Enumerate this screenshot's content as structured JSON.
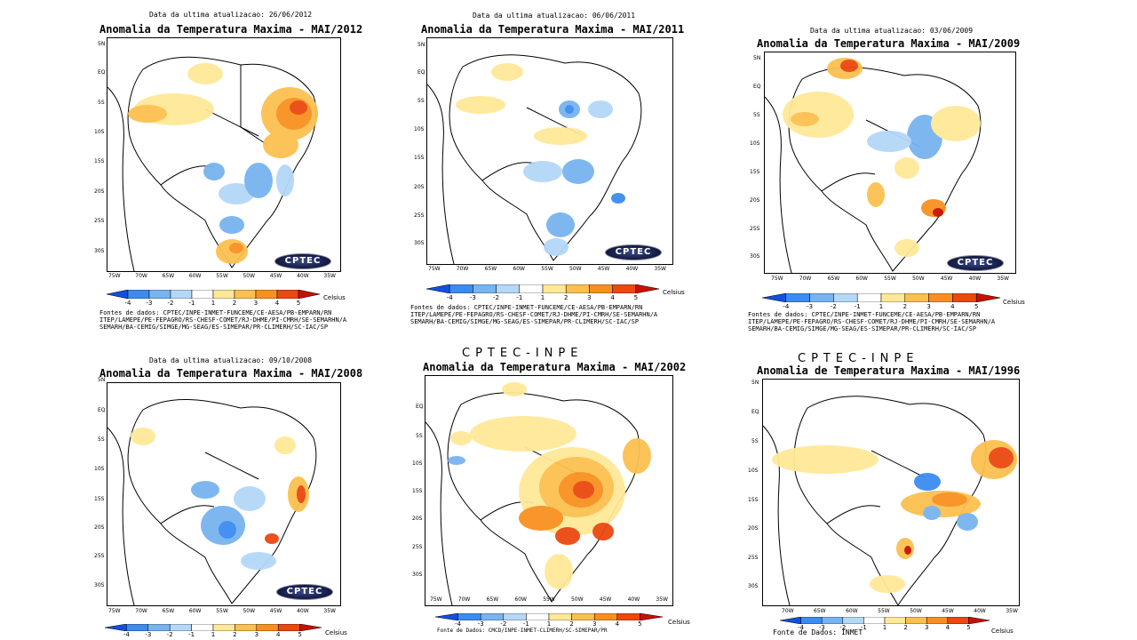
{
  "colorscale": {
    "ticks": [
      "-4",
      "-3",
      "-2",
      "-1",
      "1",
      "2",
      "3",
      "4",
      "5"
    ],
    "unit": "Celsius",
    "colors": [
      "#1050e0",
      "#3c8cf0",
      "#78b4f0",
      "#b4d8f8",
      "#ffffff",
      "#ffe898",
      "#fcc050",
      "#f89020",
      "#ec4810",
      "#c81000"
    ]
  },
  "sources_text": {
    "line1": "Fontes de dados: CPTEC/INPE-INMET-FUNCEME/CE-AESA/PB-EMPARN/RN",
    "line2": "ITEP/LAMEPE/PE-FEPAGRO/RS-CHESF-COMET/RJ-DHME/PI-CMRH/SE-SEMARHN/A",
    "line3": "SEMARH/BA-CEMIG/SIMGE/MG-SEAG/ES-SIMEPAR/PR-CLIMERH/SC-IAC/SP"
  },
  "lat_labels": [
    "5N",
    "EQ",
    "5S",
    "10S",
    "15S",
    "20S",
    "25S",
    "30S"
  ],
  "lon_labels": [
    "75W",
    "70W",
    "65W",
    "60W",
    "55W",
    "50W",
    "45W",
    "40W",
    "35W"
  ],
  "logo_text": "CPTEC",
  "panels": [
    {
      "update": "Data da ultima atualizacao: 26/06/2012",
      "header": "",
      "title": "Anomalia da Temperatura Maxima - MAI/2012",
      "sources": true,
      "logo": true
    },
    {
      "update": "Data da ultima atualizacao: 06/06/2011",
      "header": "",
      "title": "Anomalia da Temperatura Maxima - MAI/2011",
      "sources": true,
      "logo": true
    },
    {
      "update": "Data da ultima atualizacao: 03/06/2009",
      "header": "",
      "title": "Anomalia da Temperatura Maxima - MAI/2009",
      "sources": true,
      "logo": true
    },
    {
      "update": "Data da ultima atualizacao: 09/10/2008",
      "header": "",
      "title": "Anomalia da Temperatura Maxima - MAI/2008",
      "sources": false,
      "logo": true
    },
    {
      "update": "",
      "header": "CPTEC-INPE",
      "title": "Anomalia da Temperatura Maxima - MAI/2002",
      "sources_short": "Fonte de Dados: CMCD/INPE-INMET-CLIMERH/SC-SIMEPAR/PR",
      "logo": false
    },
    {
      "update": "",
      "header": "CPTEC-INPE",
      "title": "Anomalia de Temperatura Maxima - MAI/1996",
      "sources_short": "Fonte de Dados: INMET",
      "logo": false
    }
  ]
}
